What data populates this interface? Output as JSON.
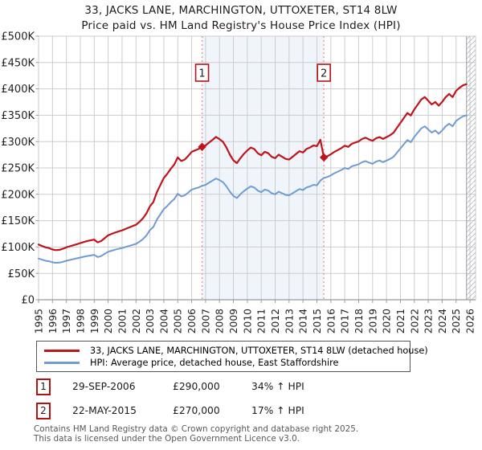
{
  "title": "33, JACKS LANE, MARCHINGTON, UTTOXETER, ST14 8LW",
  "subtitle": "Price paid vs. HM Land Registry's House Price Index (HPI)",
  "chart_data": {
    "type": "line",
    "x_axis": {
      "x_min": 1995.0,
      "x_max": 2026.4,
      "tick_labels": [
        "1995",
        "1996",
        "1997",
        "1998",
        "1999",
        "2000",
        "2001",
        "2002",
        "2003",
        "2004",
        "2005",
        "2006",
        "2007",
        "2008",
        "2009",
        "2010",
        "2011",
        "2012",
        "2013",
        "2014",
        "2015",
        "2016",
        "2017",
        "2018",
        "2019",
        "2020",
        "2021",
        "2022",
        "2023",
        "2024",
        "2025",
        "2026"
      ]
    },
    "y_axis": {
      "min_k": 0,
      "max_k": 500,
      "step_k": 50,
      "unit": "GBP thousands",
      "tick_labels": [
        "£0",
        "£50K",
        "£100K",
        "£150K",
        "£200K",
        "£250K",
        "£300K",
        "£350K",
        "£400K",
        "£450K",
        "£500K"
      ]
    },
    "grid": true,
    "colors": {
      "price_line": "#c0141c",
      "hpi_line": "#6e9cd2",
      "grid": "#cccccc",
      "axis": "#9a9a9a",
      "band": "#f0f4fb",
      "marker_dash": "#f19090",
      "marker_box_border": "#b51414",
      "hatch_line": "#b9bec6",
      "label_text": "#222222"
    },
    "shaded_band": {
      "from_x": 2006.75,
      "to_x": 2015.5
    },
    "future_hatch_from_x": 2025.75,
    "series": [
      {
        "name": "price-paid",
        "legend": "33, JACKS LANE, MARCHINGTON, UTTOXETER, ST14 8LW (detached house)",
        "color": "#c0141c",
        "width": 2.2,
        "x_start": 1995.0,
        "x_step": 0.25,
        "values_k": [
          104.7,
          102.0,
          99.4,
          98.0,
          95.3,
          94.0,
          94.7,
          96.7,
          99.4,
          101.4,
          103.4,
          105.4,
          107.4,
          109.4,
          111.4,
          112.8,
          114.1,
          108.8,
          111.4,
          116.8,
          122.2,
          124.9,
          127.5,
          129.6,
          131.6,
          134.3,
          137.0,
          139.6,
          142.3,
          147.7,
          154.4,
          163.8,
          177.2,
          185.3,
          204.1,
          217.5,
          230.9,
          239.0,
          248.4,
          256.4,
          269.9,
          263.2,
          265.8,
          272.5,
          280.6,
          283.3,
          286.0,
          290.0,
          292.7,
          298.1,
          303.4,
          308.8,
          304.8,
          299.4,
          288.7,
          275.2,
          264.5,
          259.1,
          268.5,
          276.6,
          283.3,
          288.7,
          286.0,
          277.9,
          273.9,
          280.6,
          277.9,
          271.2,
          268.5,
          275.2,
          271.2,
          267.2,
          265.8,
          271.2,
          276.6,
          281.9,
          279.3,
          286.0,
          288.7,
          292.7,
          291.3,
          303.4,
          270.0,
          272.3,
          275.9,
          280.5,
          284.0,
          287.5,
          292.2,
          289.9,
          295.7,
          298.1,
          300.4,
          305.1,
          307.4,
          303.9,
          301.6,
          306.2,
          308.6,
          305.1,
          308.6,
          312.1,
          316.7,
          326.1,
          335.4,
          344.8,
          354.2,
          349.5,
          361.2,
          370.5,
          379.9,
          384.5,
          377.5,
          370.5,
          375.2,
          368.2,
          375.2,
          384.5,
          390.4,
          384.5,
          396.2,
          402.1,
          406.7,
          409.0
        ]
      },
      {
        "name": "hpi",
        "legend": "HPI: Average price, detached house, East Staffordshire",
        "color": "#6e9cd2",
        "width": 2.0,
        "x_start": 1995.0,
        "x_step": 0.25,
        "values_k": [
          78,
          76,
          74,
          73,
          71,
          70,
          70.5,
          72,
          74,
          75.5,
          77,
          78.5,
          80,
          81.5,
          83,
          84,
          85,
          81,
          83,
          87,
          91,
          93,
          95,
          96.5,
          98,
          100,
          102,
          104,
          106,
          110,
          115,
          122,
          132,
          138,
          152,
          162,
          172,
          178,
          185,
          191,
          201,
          196,
          198,
          203,
          209,
          211,
          213,
          216,
          218,
          222,
          226,
          230,
          227,
          223,
          215,
          205,
          197,
          193,
          200,
          206,
          211,
          215,
          213,
          207,
          204,
          209,
          207,
          202,
          200,
          205,
          202,
          199,
          198,
          202,
          206,
          210,
          208,
          213,
          215,
          218,
          217,
          226,
          231,
          233,
          236,
          240,
          243,
          246,
          250,
          248,
          253,
          255,
          257,
          261,
          263,
          260,
          258,
          262,
          264,
          261,
          264,
          267,
          271,
          279,
          287,
          295,
          303,
          299,
          309,
          317,
          325,
          329,
          323,
          317,
          321,
          315,
          321,
          329,
          334,
          329,
          339,
          344,
          348,
          350
        ]
      }
    ],
    "sale_markers": [
      {
        "label": "1",
        "x": 2006.75,
        "price_k": 290
      },
      {
        "label": "2",
        "x": 2015.5,
        "price_k": 270
      }
    ]
  },
  "legend": {
    "entries": [
      {
        "label": "33, JACKS LANE, MARCHINGTON, UTTOXETER, ST14 8LW (detached house)"
      },
      {
        "label": "HPI: Average price, detached house, East Staffordshire"
      }
    ]
  },
  "sales_table": {
    "rows": [
      {
        "num": "1",
        "date": "29-SEP-2006",
        "price": "£290,000",
        "hpi_change": "34% ↑ HPI"
      },
      {
        "num": "2",
        "date": "22-MAY-2015",
        "price": "£270,000",
        "hpi_change": "17% ↑ HPI"
      }
    ]
  },
  "footer": {
    "line1": "Contains HM Land Registry data © Crown copyright and database right 2025.",
    "line2": "This data is licensed under the Open Government Licence v3.0."
  }
}
